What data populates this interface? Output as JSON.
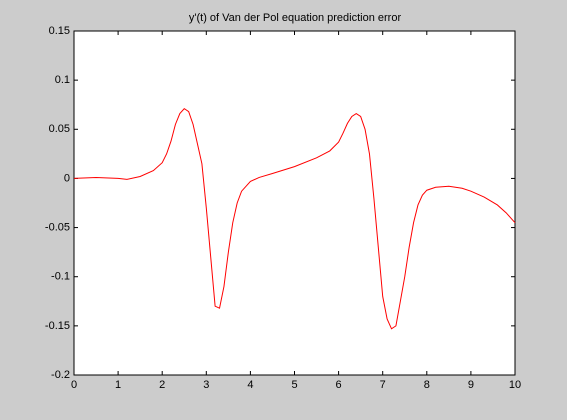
{
  "chart_data": {
    "type": "line",
    "title": "y'(t) of Van der Pol equation prediction error",
    "x": [
      0,
      0.5,
      1,
      1.2,
      1.5,
      1.8,
      2,
      2.1,
      2.2,
      2.3,
      2.4,
      2.5,
      2.6,
      2.7,
      2.8,
      2.9,
      3,
      3.1,
      3.2,
      3.3,
      3.4,
      3.5,
      3.6,
      3.7,
      3.8,
      4,
      4.2,
      4.5,
      5,
      5.5,
      5.8,
      6,
      6.1,
      6.2,
      6.3,
      6.4,
      6.5,
      6.6,
      6.7,
      6.8,
      6.9,
      7,
      7.1,
      7.2,
      7.3,
      7.4,
      7.5,
      7.6,
      7.7,
      7.8,
      7.9,
      8,
      8.2,
      8.5,
      8.8,
      9,
      9.3,
      9.6,
      9.8,
      10
    ],
    "values": [
      0,
      0.001,
      0,
      -0.001,
      0.002,
      0.008,
      0.016,
      0.025,
      0.038,
      0.055,
      0.066,
      0.071,
      0.068,
      0.055,
      0.035,
      0.015,
      -0.03,
      -0.08,
      -0.13,
      -0.132,
      -0.11,
      -0.075,
      -0.045,
      -0.025,
      -0.013,
      -0.003,
      0.001,
      0.005,
      0.012,
      0.021,
      0.028,
      0.037,
      0.046,
      0.056,
      0.063,
      0.066,
      0.063,
      0.05,
      0.025,
      -0.02,
      -0.07,
      -0.12,
      -0.143,
      -0.153,
      -0.15,
      -0.125,
      -0.1,
      -0.07,
      -0.045,
      -0.027,
      -0.017,
      -0.012,
      -0.009,
      -0.008,
      -0.01,
      -0.013,
      -0.019,
      -0.027,
      -0.035,
      -0.045
    ],
    "color": "#ff0000",
    "xlim": [
      0,
      10
    ],
    "xticks": [
      0,
      1,
      2,
      3,
      4,
      5,
      6,
      7,
      8,
      9,
      10
    ],
    "ylim": [
      -0.2,
      0.15
    ],
    "yticks": [
      -0.2,
      -0.15,
      -0.1,
      -0.05,
      0,
      0.05,
      0.1,
      0.15
    ],
    "grid": false
  }
}
